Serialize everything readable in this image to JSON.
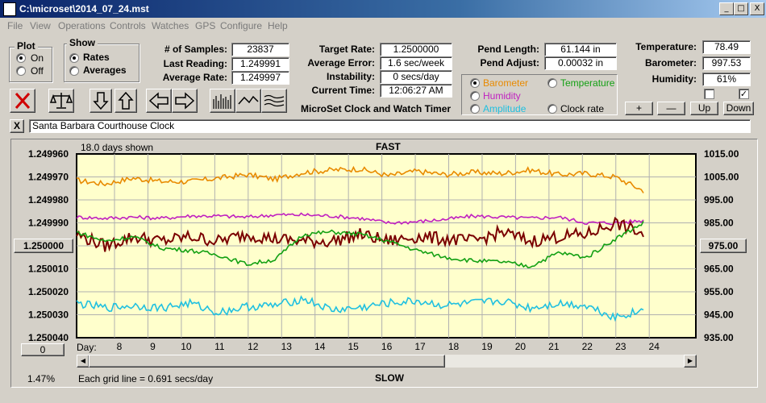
{
  "window": {
    "title": "C:\\microset\\2014_07_24.mst",
    "min": "_",
    "max": "□",
    "close": "X"
  },
  "menu": [
    "File",
    "View",
    "Operations",
    "Controls",
    "Watches",
    "GPS",
    "Configure",
    "Help"
  ],
  "plot_group": {
    "title": "Plot",
    "options": [
      "On",
      "Off"
    ],
    "selected": "On"
  },
  "show_group": {
    "title": "Show",
    "options": [
      "Rates",
      "Averages"
    ],
    "selected": "Rates"
  },
  "stats": {
    "samples_label": "# of Samples:",
    "samples": "23837",
    "last_label": "Last Reading:",
    "last": "1.249991",
    "avg_label": "Average Rate:",
    "avg": "1.249997"
  },
  "rates": {
    "target_label": "Target Rate:",
    "target": "1.2500000",
    "error_label": "Average Error:",
    "error": "1.6 sec/week",
    "instab_label": "Instability:",
    "instab": "0 secs/day",
    "time_label": "Current Time:",
    "time": "12:06:27 AM",
    "subtitle": "MicroSet Clock and Watch Timer"
  },
  "pend": {
    "length_label": "Pend Length:",
    "length": "61.144 in",
    "adjust_label": "Pend Adjust:",
    "adjust": "0.00032 in"
  },
  "env": {
    "temp_label": "Temperature:",
    "temp": "78.49",
    "baro_label": "Barometer:",
    "baro": "997.53",
    "hum_label": "Humidity:",
    "hum": "61%"
  },
  "sensor_select": {
    "options": [
      {
        "label": "Barometer",
        "color": "#e88a00",
        "selected": true
      },
      {
        "label": "Temperature",
        "color": "#13a013",
        "selected": false
      },
      {
        "label": "Humidity",
        "color": "#c020c0",
        "selected": false
      },
      {
        "label": "Clock rate",
        "color": "#000000",
        "selected": false
      },
      {
        "label": "Amplitude",
        "color": "#20c0e0",
        "selected": false
      }
    ]
  },
  "scale_buttons": [
    "+",
    "—",
    "Up",
    "Down"
  ],
  "checks": [
    false,
    true
  ],
  "clock_name": "Santa Barbara Courthouse Clock",
  "clear_button": "X",
  "chart_header": {
    "days_shown": "18.0 days shown",
    "fast": "FAST",
    "slow": "SLOW",
    "grid_note": "Each grid line = 0.691 secs/day",
    "percent": "1.47%",
    "day_label": "Day:"
  },
  "left_button": "1.250000",
  "right_button": "975.00",
  "bottom_button": "0",
  "chart_data": {
    "type": "line",
    "x_label": "Day:",
    "x_ticks": [
      "8",
      "9",
      "10",
      "11",
      "12",
      "13",
      "14",
      "15",
      "16",
      "17",
      "18",
      "19",
      "20",
      "21",
      "22",
      "23",
      "24"
    ],
    "left_axis_ticks": [
      "1.249960",
      "1.249970",
      "1.249980",
      "1.249990",
      "1.250000",
      "1.250010",
      "1.250020",
      "1.250030",
      "1.250040"
    ],
    "right_axis_ticks": [
      "1015.00",
      "1005.00",
      "995.00",
      "985.00",
      "975.00",
      "965.00",
      "955.00",
      "945.00",
      "935.00"
    ],
    "left_range": [
      1.24996,
      1.25004
    ],
    "right_range": [
      935,
      1015
    ],
    "grid": true,
    "series": [
      {
        "color": "#e88a00",
        "values": [
          1003.5,
          1002,
          1004.5,
          1003,
          1003,
          1004.5,
          1006,
          1004,
          1007,
          1008,
          1008.5,
          1005.5,
          1007.5,
          1006,
          1007,
          1006.5,
          1008,
          1006,
          1006.5,
          1005,
          999
        ]
      },
      {
        "color": "#c020c0",
        "values": [
          987.5,
          987,
          987.5,
          987,
          988,
          988,
          987.5,
          988.5,
          988.5,
          988,
          987,
          985,
          985.5,
          986.5,
          988,
          987.5,
          987,
          987.5,
          985,
          985,
          986
        ]
      },
      {
        "color": "#7a0000",
        "values": [
          980,
          975,
          979,
          977,
          979,
          977,
          980,
          978,
          977,
          977,
          980,
          977,
          979,
          978,
          977,
          981,
          977,
          979,
          980,
          985,
          980
        ]
      },
      {
        "color": "#13a013",
        "values": [
          981,
          977,
          979,
          974,
          973,
          971,
          967,
          969,
          980,
          981,
          980,
          977,
          973,
          970,
          968.5,
          968,
          966,
          972,
          970,
          978,
          985
        ]
      },
      {
        "color": "#20c0e0",
        "values": [
          950,
          948,
          949,
          948,
          950,
          946,
          948.5,
          949,
          952,
          947,
          948,
          950,
          951,
          949,
          950,
          951,
          948,
          950,
          949,
          944,
          947
        ]
      }
    ]
  }
}
